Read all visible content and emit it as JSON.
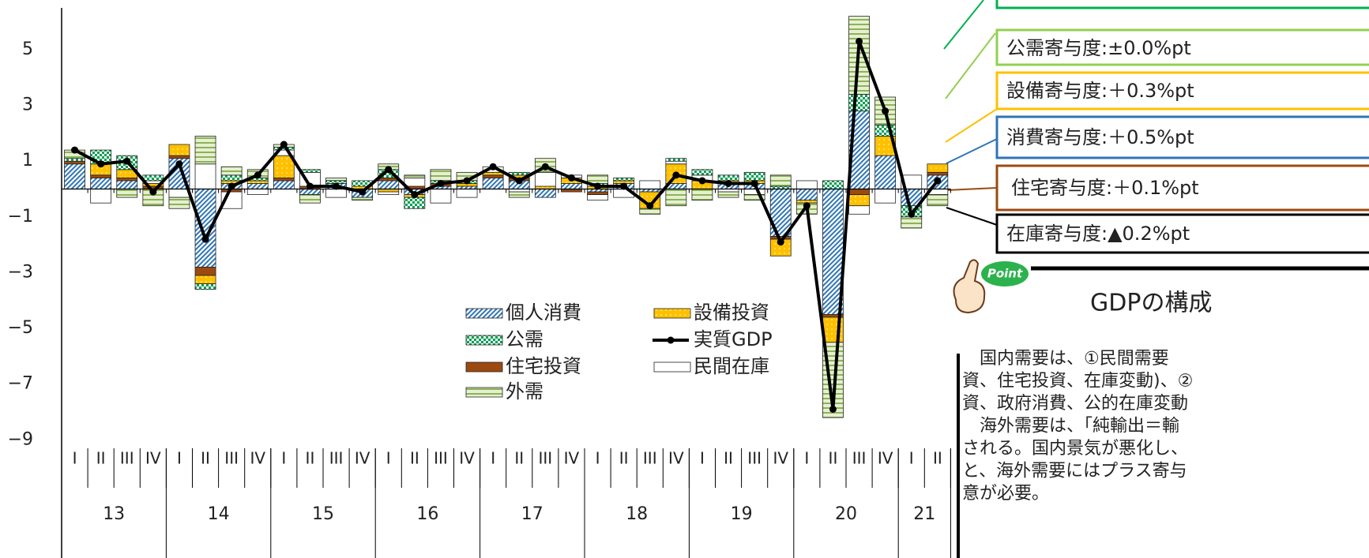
{
  "chart_data": {
    "type": "stacked_bar",
    "categories": [
      "I",
      "II",
      "III",
      "IV",
      "I",
      "II",
      "III",
      "IV",
      "I",
      "II",
      "III",
      "IV",
      "I",
      "II",
      "III",
      "IV",
      "I",
      "II",
      "III",
      "IV",
      "I",
      "II",
      "III",
      "IV",
      "I",
      "II",
      "III",
      "IV",
      "I",
      "II",
      "III",
      "IV",
      "I",
      "II"
    ],
    "year_categories": [
      "13",
      null,
      null,
      null,
      "14",
      null,
      null,
      null,
      "15",
      null,
      null,
      null,
      "16",
      null,
      null,
      null,
      "17",
      null,
      null,
      null,
      "18",
      null,
      null,
      null,
      "19",
      null,
      null,
      null,
      "20",
      null,
      null,
      null,
      "21",
      null
    ],
    "ylim": [
      -9.5,
      6.5
    ],
    "yticks": [
      {
        "value": 5,
        "label": "5"
      },
      {
        "value": 3,
        "label": "3"
      },
      {
        "value": 1,
        "label": "1"
      },
      {
        "value": -1,
        "label": "−1"
      },
      {
        "value": -3,
        "label": "−3"
      },
      {
        "value": -5,
        "label": "−5"
      },
      {
        "value": -7,
        "label": "−7"
      },
      {
        "value": -9,
        "label": "−9"
      }
    ],
    "grid": false,
    "series": [
      {
        "name": "個人消費",
        "type": "bar",
        "pattern": "diagonal",
        "color": "#2e75b6",
        "values": [
          0.9,
          0.4,
          0.3,
          0.0,
          1.1,
          -2.8,
          0.2,
          0.2,
          0.3,
          -0.2,
          0.2,
          -0.3,
          0.3,
          -0.2,
          0.1,
          0.1,
          0.4,
          0.3,
          -0.3,
          0.2,
          -0.1,
          0.2,
          -0.1,
          0.2,
          0.0,
          0.2,
          0.2,
          -1.7,
          -0.4,
          -4.5,
          2.8,
          1.2,
          -0.6,
          0.5
        ]
      },
      {
        "name": "住宅投資",
        "type": "bar",
        "pattern": "solid",
        "color": "#9c4a10",
        "values": [
          0.1,
          0.1,
          0.1,
          0.1,
          0.1,
          -0.3,
          -0.1,
          0.0,
          0.1,
          0.1,
          0.0,
          0.0,
          0.1,
          0.1,
          0.1,
          0.0,
          0.1,
          0.1,
          0.0,
          -0.1,
          -0.1,
          0.0,
          0.0,
          0.0,
          0.0,
          0.0,
          0.0,
          -0.1,
          0.0,
          -0.1,
          -0.2,
          0.0,
          0.0,
          0.1
        ]
      },
      {
        "name": "設備投資",
        "type": "bar",
        "pattern": "dots",
        "color": "#ffc000",
        "values": [
          0.0,
          0.4,
          0.3,
          0.1,
          0.4,
          -0.3,
          0.1,
          0.1,
          0.8,
          0.0,
          0.0,
          0.1,
          -0.1,
          -0.1,
          0.0,
          0.1,
          0.1,
          0.1,
          0.1,
          0.2,
          0.1,
          0.1,
          -0.6,
          0.7,
          0.3,
          0.1,
          0.1,
          -0.6,
          -0.1,
          -0.9,
          -0.4,
          0.7,
          0.0,
          0.3
        ]
      },
      {
        "name": "民間在庫",
        "type": "bar",
        "pattern": "solid",
        "color": "#ffffff",
        "values": [
          0.0,
          -0.5,
          0.0,
          0.1,
          -0.3,
          0.9,
          -0.6,
          -0.2,
          0.2,
          0.5,
          -0.3,
          0.0,
          -0.1,
          0.3,
          -0.5,
          -0.3,
          0.2,
          -0.1,
          0.5,
          0.1,
          -0.2,
          -0.3,
          0.3,
          0.1,
          0.2,
          -0.1,
          -0.2,
          0.0,
          0.3,
          0.0,
          -0.3,
          -0.5,
          0.5,
          -0.2
        ]
      },
      {
        "name": "公需",
        "type": "bar",
        "pattern": "checker",
        "color": "#00a050",
        "values": [
          0.1,
          0.5,
          0.5,
          0.2,
          0.0,
          -0.2,
          0.2,
          0.1,
          0.1,
          0.1,
          0.1,
          0.2,
          0.3,
          -0.4,
          0.1,
          0.1,
          0.0,
          0.1,
          0.0,
          0.0,
          0.1,
          0.1,
          0.0,
          0.1,
          0.2,
          0.2,
          0.3,
          0.1,
          0.0,
          0.3,
          0.6,
          0.4,
          -0.4,
          0.0
        ]
      },
      {
        "name": "外需",
        "type": "bar",
        "pattern": "stripes",
        "color": "#8db35a",
        "values": [
          0.3,
          0.0,
          -0.3,
          -0.6,
          -0.4,
          1.0,
          0.3,
          0.3,
          0.1,
          -0.3,
          0.1,
          -0.1,
          0.2,
          0.1,
          0.4,
          0.3,
          0.0,
          -0.2,
          0.5,
          0.0,
          0.3,
          0.0,
          -0.2,
          -0.6,
          -0.4,
          -0.2,
          -0.2,
          0.4,
          -0.4,
          -2.7,
          2.8,
          1.0,
          -0.4,
          -0.4
        ]
      },
      {
        "name": "実質GDP",
        "type": "line",
        "color": "#000000",
        "values": [
          1.4,
          0.9,
          1.0,
          -0.1,
          0.9,
          -1.8,
          0.1,
          0.5,
          1.6,
          0.1,
          0.1,
          -0.1,
          0.7,
          -0.2,
          0.2,
          0.3,
          0.8,
          0.3,
          0.8,
          0.4,
          0.1,
          0.1,
          -0.6,
          0.5,
          0.3,
          0.2,
          0.2,
          -1.9,
          -0.6,
          -7.9,
          5.3,
          2.8,
          -0.9,
          0.3
        ]
      }
    ]
  },
  "callouts": [
    {
      "text": "公需寄与度:±0.0%pt"
    },
    {
      "text": "設備寄与度:＋0.3%pt"
    },
    {
      "text": "消費寄与度:＋0.5%pt"
    },
    {
      "text": "住宅寄与度:＋0.1%pt"
    },
    {
      "text": "在庫寄与度:▲0.2%pt"
    }
  ],
  "point": {
    "badge": "Point",
    "heading": "GDPの構成",
    "lines": [
      "　国内需要は、①民間需要",
      "資、住宅投資、在庫変動)、②",
      "資、政府消費、公的在庫変動",
      "　海外需要は、「純輸出＝輸",
      "される。国内景気が悪化し、",
      "と、海外需要にはプラス寄与",
      "意が必要。"
    ]
  }
}
